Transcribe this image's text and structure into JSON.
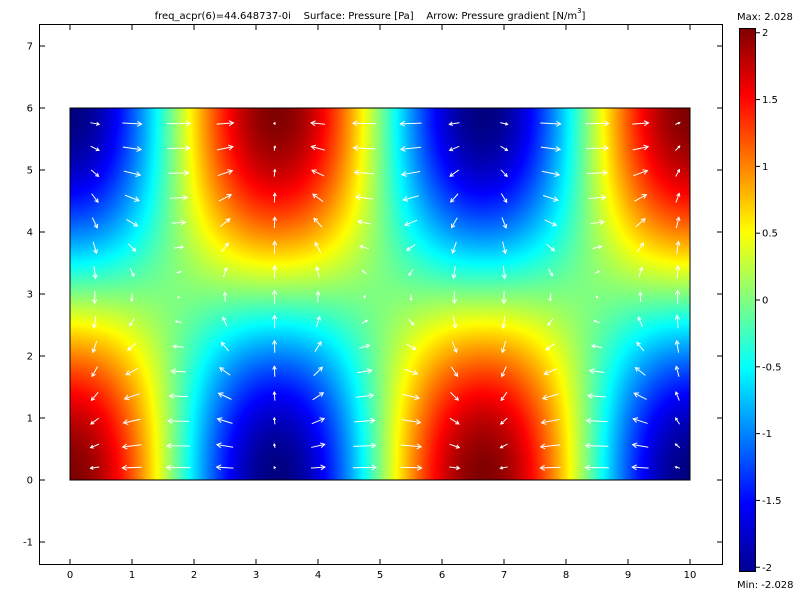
{
  "title": {
    "prefix": "freq_acpr(6)=44.648737-0i",
    "surface": "Surface: Pressure [Pa]",
    "arrow": "Arrow: Pressure gradient [N/m",
    "arrow_exp": "3",
    "arrow_close": "]"
  },
  "colorbar": {
    "max_label": "Max: 2.028",
    "min_label": "Min: -2.028",
    "ticks": [
      {
        "value": 2,
        "label": "2"
      },
      {
        "value": 1.5,
        "label": "1.5"
      },
      {
        "value": 1,
        "label": "1"
      },
      {
        "value": 0.5,
        "label": "0.5"
      },
      {
        "value": 0,
        "label": "0"
      },
      {
        "value": -0.5,
        "label": "-0.5"
      },
      {
        "value": -1,
        "label": "-1"
      },
      {
        "value": -1.5,
        "label": "-1.5"
      },
      {
        "value": -2,
        "label": "-2"
      }
    ],
    "colormap": "jet"
  },
  "chart_data": {
    "type": "heatmap",
    "title": "freq_acpr(6)=44.648737-0i    Surface: Pressure [Pa]    Arrow: Pressure gradient [N/m^3]",
    "xlim": [
      -0.5,
      10.5
    ],
    "ylim": [
      -1.3,
      7.5
    ],
    "x_ticks": [
      0,
      1,
      2,
      3,
      4,
      5,
      6,
      7,
      8,
      9,
      10
    ],
    "y_ticks": [
      -1,
      0,
      1,
      2,
      3,
      4,
      5,
      6,
      7
    ],
    "x_tick_labels": [
      "0",
      "1",
      "2",
      "3",
      "4",
      "5",
      "6",
      "7",
      "8",
      "9",
      "10"
    ],
    "y_tick_labels": [
      "-1",
      "0",
      "1",
      "2",
      "3",
      "4",
      "5",
      "6",
      "7"
    ],
    "domain": {
      "x": [
        0,
        10
      ],
      "y": [
        0,
        6
      ]
    },
    "surface": {
      "quantity": "Pressure [Pa]",
      "min": -2.028,
      "max": 2.028,
      "field": "p = 2.028 * cos(3*pi*x/10) * cos(pi*y/6)"
    },
    "arrows": {
      "quantity": "Pressure gradient [N/m^3]",
      "color": "#ffffff",
      "grid_x": [
        0.4,
        1.0,
        1.75,
        2.5,
        3.3,
        4.0,
        4.75,
        5.5,
        6.2,
        7.0,
        7.75,
        8.5,
        9.2,
        9.8
      ],
      "grid_y": [
        0.2,
        0.55,
        0.95,
        1.35,
        1.75,
        2.15,
        2.55,
        2.95,
        3.35,
        3.75,
        4.15,
        4.55,
        4.95,
        5.35,
        5.75
      ]
    },
    "grid": false,
    "colorbar_range": [
      -2.028,
      2.028
    ]
  },
  "colors": {
    "frame": "#000000",
    "background": "#ffffff",
    "arrow": "#ffffff"
  }
}
